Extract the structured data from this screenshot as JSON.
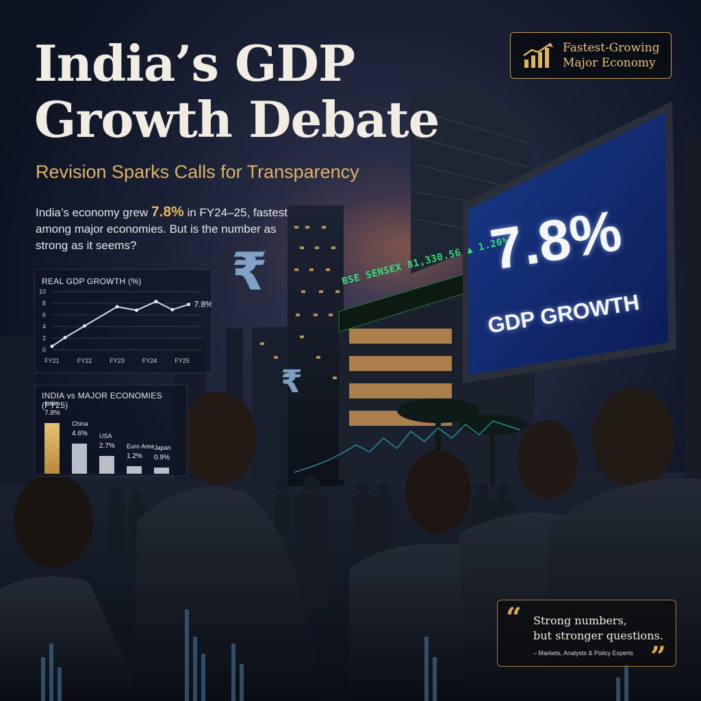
{
  "header": {
    "title_line1": "India’s GDP",
    "title_line2": "Growth Debate",
    "subtitle": "Revision Sparks Calls for Transparency"
  },
  "intro": {
    "before": "India’s economy grew ",
    "highlight": "7.8%",
    "after": " in FY24–25, fastest among major economies. But is the number as strong as it seems?"
  },
  "badge": {
    "line1": "Fastest-Growing",
    "line2": "Major Economy"
  },
  "billboard": {
    "value": "7.8%",
    "label": "GDP GROWTH"
  },
  "ticker": {
    "text": "BSE SENSEX 81,330.56 ▲ 1.20%"
  },
  "rupee_symbol": "₹",
  "quote": {
    "line1": "Strong numbers,",
    "line2": "but stronger questions.",
    "attribution": "– Markets, Analysts & Policy Experts"
  },
  "colors": {
    "accent_gold": "#e0b363",
    "brand_dark": "#0b1220",
    "chart_line": "#d6dae3",
    "ticker_green": "#34e07a"
  },
  "chart_data": [
    {
      "type": "line",
      "title": "REAL GDP GROWTH (%)",
      "x_labels": [
        "FY21",
        "FY22",
        "FY23",
        "FY24",
        "FY25"
      ],
      "points": [
        {
          "x": 2021.0,
          "y": 0.6
        },
        {
          "x": 2021.4,
          "y": 2.1
        },
        {
          "x": 2022.0,
          "y": 4.1
        },
        {
          "x": 2023.0,
          "y": 7.4
        },
        {
          "x": 2023.6,
          "y": 6.8
        },
        {
          "x": 2024.2,
          "y": 8.3
        },
        {
          "x": 2024.7,
          "y": 6.9
        },
        {
          "x": 2025.2,
          "y": 7.8
        }
      ],
      "end_label": "7.8%",
      "y_ticks": [
        0,
        2,
        4,
        6,
        8,
        10
      ],
      "ylim": [
        0,
        10
      ],
      "grid": true
    },
    {
      "type": "bar",
      "title": "INDIA vs MAJOR ECONOMIES (FY25)",
      "categories": [
        "India",
        "China",
        "USA",
        "Euro Area",
        "Japan"
      ],
      "values": [
        7.8,
        4.6,
        2.7,
        1.2,
        0.9
      ],
      "value_labels": [
        "7.8%",
        "4.6%",
        "2.7%",
        "1.2%",
        "0.9%"
      ],
      "highlight": "India"
    }
  ]
}
